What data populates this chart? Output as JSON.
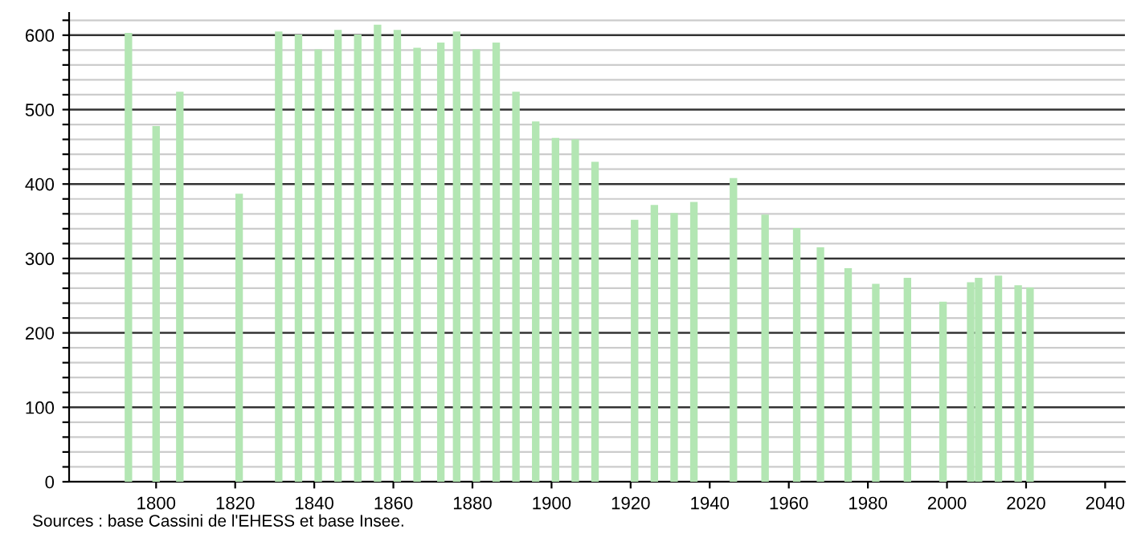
{
  "chart_data": {
    "type": "bar",
    "x": [
      1793,
      1800,
      1806,
      1821,
      1831,
      1836,
      1841,
      1846,
      1851,
      1856,
      1861,
      1866,
      1872,
      1876,
      1881,
      1886,
      1891,
      1896,
      1901,
      1906,
      1911,
      1921,
      1926,
      1931,
      1936,
      1946,
      1954,
      1962,
      1968,
      1975,
      1982,
      1990,
      1999,
      2006,
      2008,
      2013,
      2018,
      2021
    ],
    "values": [
      603,
      478,
      524,
      387,
      605,
      601,
      581,
      607,
      601,
      614,
      607,
      583,
      590,
      605,
      581,
      590,
      524,
      484,
      462,
      460,
      430,
      352,
      372,
      361,
      376,
      408,
      359,
      341,
      315,
      287,
      266,
      274,
      242,
      268,
      274,
      277,
      264,
      261
    ],
    "color": "#b3e6b3",
    "xlim": [
      1778,
      2045
    ],
    "xticks": [
      1800,
      1820,
      1840,
      1860,
      1880,
      1900,
      1920,
      1940,
      1960,
      1980,
      2000,
      2020,
      2040
    ],
    "ylim": [
      0,
      630
    ],
    "yticks": [
      0,
      {
        "value": 20,
        "label": null
      },
      {
        "value": 40,
        "label": null
      },
      {
        "value": 60,
        "label": null
      },
      {
        "value": 80,
        "label": null
      },
      100,
      {
        "value": 120,
        "label": null
      },
      {
        "value": 140,
        "label": null
      },
      {
        "value": 160,
        "label": null
      },
      {
        "value": 180,
        "label": null
      },
      200,
      {
        "value": 220,
        "label": null
      },
      {
        "value": 240,
        "label": null
      },
      {
        "value": 260,
        "label": null
      },
      {
        "value": 280,
        "label": null
      },
      300,
      {
        "value": 320,
        "label": null
      },
      {
        "value": 340,
        "label": null
      },
      {
        "value": 360,
        "label": null
      },
      {
        "value": 380,
        "label": null
      },
      400,
      {
        "value": 420,
        "label": null
      },
      {
        "value": 440,
        "label": null
      },
      {
        "value": 460,
        "label": null
      },
      {
        "value": 480,
        "label": null
      },
      500,
      {
        "value": 520,
        "label": null
      },
      {
        "value": 540,
        "label": null
      },
      {
        "value": 560,
        "label": null
      },
      {
        "value": 580,
        "label": null
      },
      600,
      {
        "value": 620,
        "label": null
      }
    ],
    "grid": "y",
    "annotations": [
      "Sources : base Cassini de l'EHESS et base Insee."
    ]
  }
}
